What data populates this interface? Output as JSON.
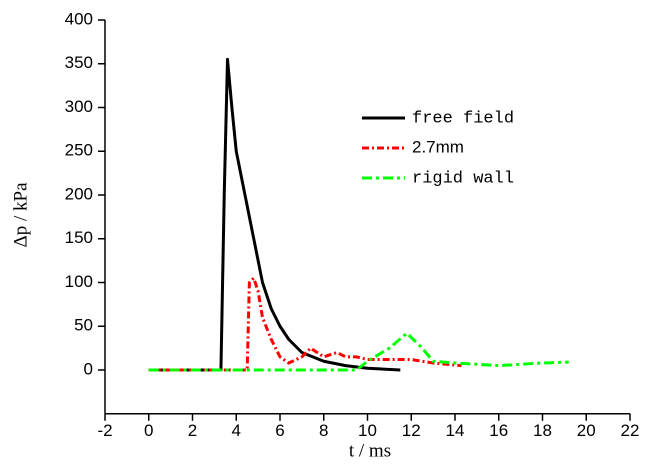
{
  "chart_data": {
    "type": "line",
    "xlabel": "t / ms",
    "ylabel": "Δp / kPa",
    "xlim": [
      -2,
      22
    ],
    "xticks": [
      -2,
      0,
      2,
      4,
      6,
      8,
      10,
      12,
      14,
      16,
      18,
      20,
      22
    ],
    "ylim": [
      -50,
      400
    ],
    "yticks": [
      0,
      50,
      100,
      150,
      200,
      250,
      300,
      350,
      400
    ],
    "series": [
      {
        "name": "free field",
        "color": "#000000",
        "x": [
          0,
          1,
          2,
          3,
          3.3,
          3.45,
          3.6,
          3.8,
          4.0,
          4.4,
          4.8,
          5.2,
          5.6,
          6.0,
          6.4,
          7.0,
          8.0,
          9.0,
          10.0,
          11.5
        ],
        "values": [
          0,
          0,
          0,
          0,
          0,
          200,
          355,
          300,
          250,
          200,
          150,
          100,
          70,
          50,
          35,
          20,
          10,
          5,
          2,
          0
        ]
      },
      {
        "name": "2.7mm",
        "color": "#ff0000",
        "x": [
          0,
          1,
          2,
          3,
          4,
          4.5,
          4.6,
          4.8,
          5.0,
          5.2,
          5.6,
          6.0,
          6.4,
          7.0,
          7.4,
          8.0,
          8.6,
          9.0,
          9.5,
          10,
          11,
          12,
          13,
          14.3
        ],
        "values": [
          0,
          0,
          0,
          0,
          0,
          0,
          100,
          105,
          90,
          60,
          35,
          15,
          8,
          15,
          25,
          15,
          20,
          15,
          15,
          12,
          12,
          12,
          8,
          5
        ]
      },
      {
        "name": "rigid wall",
        "color": "#00ff00",
        "x": [
          0,
          2,
          4,
          6,
          8,
          9.5,
          10,
          11,
          11.8,
          12.5,
          13,
          14,
          16,
          18,
          19.2
        ],
        "values": [
          0,
          0,
          0,
          0,
          0,
          0,
          10,
          25,
          42,
          25,
          10,
          8,
          5,
          8,
          9
        ]
      }
    ]
  }
}
